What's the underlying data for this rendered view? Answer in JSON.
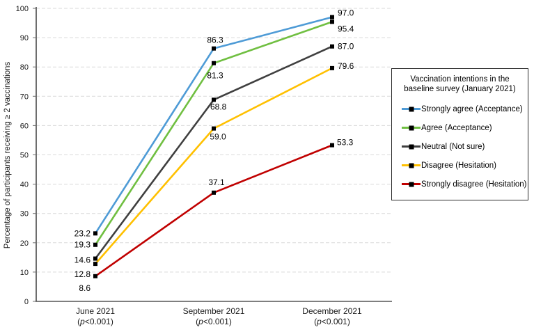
{
  "chart_data": {
    "type": "line",
    "title": "",
    "xlabel": "",
    "ylabel": "Percentage of participants receiving ≥ 2 vaccinations",
    "ylim": [
      0,
      100
    ],
    "y_ticks": [
      0,
      10,
      20,
      30,
      40,
      50,
      60,
      70,
      80,
      90,
      100
    ],
    "grid": "horizontal-dashed",
    "categories": [
      "June 2021",
      "September 2021",
      "December 2021"
    ],
    "category_sublabels": [
      "(p<0.001)",
      "(p<0.001)",
      "(p<0.001)"
    ],
    "marker": "black-square",
    "colors": {
      "grid": "#D9D9D9",
      "axis": "#6E6E6E",
      "x_axis": "#333333",
      "marker": "#000000",
      "text": "#000000"
    },
    "legend": {
      "title": "Vaccination intentions in the baseline survey (January 2021)",
      "position": "right"
    },
    "series": [
      {
        "name": "Strongly agree (Acceptance)",
        "color": "#4E9BD6",
        "values": [
          23.2,
          86.3,
          97.0
        ],
        "labels": [
          "23.2",
          "86.3",
          "97.0"
        ]
      },
      {
        "name": "Agree (Acceptance)",
        "color": "#70BF41",
        "values": [
          19.3,
          81.3,
          95.4
        ],
        "labels": [
          "19.3",
          "81.3",
          "95.4"
        ]
      },
      {
        "name": "Neutral (Not sure)",
        "color": "#3F3F3F",
        "values": [
          14.6,
          68.8,
          87.0
        ],
        "labels": [
          "14.6",
          "68.8",
          "87.0"
        ]
      },
      {
        "name": "Disagree (Hesitation)",
        "color": "#FFC000",
        "values": [
          12.8,
          59.0,
          79.6
        ],
        "labels": [
          "12.8",
          "59.0",
          "79.6"
        ]
      },
      {
        "name": "Strongly disagree (Hesitation)",
        "color": "#C00000",
        "values": [
          8.6,
          37.1,
          53.3
        ],
        "labels": [
          "8.6",
          "37.1",
          "53.3"
        ]
      }
    ]
  }
}
